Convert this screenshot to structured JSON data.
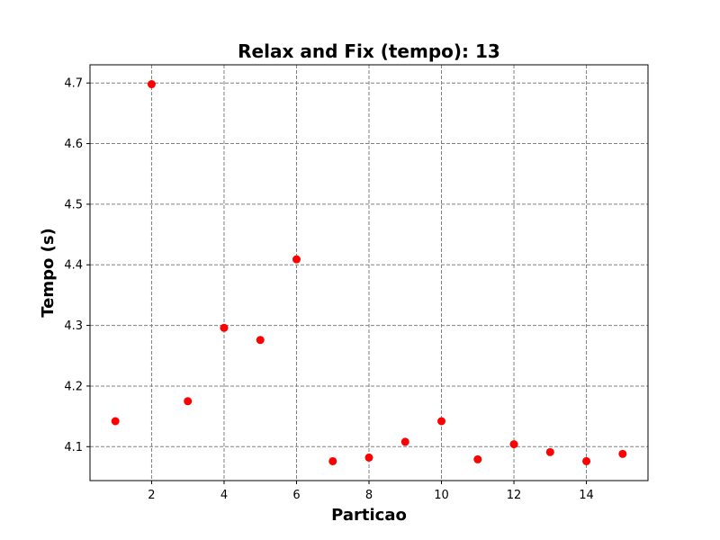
{
  "chart_data": {
    "type": "scatter",
    "title": "Relax and Fix (tempo): 13",
    "xlabel": "Particao",
    "ylabel": "Tempo (s)",
    "xlim": [
      0.3,
      15.7
    ],
    "ylim": [
      4.044,
      4.73
    ],
    "xticks": [
      2,
      4,
      6,
      8,
      10,
      12,
      14
    ],
    "yticks": [
      4.1,
      4.2,
      4.3,
      4.4,
      4.5,
      4.6,
      4.7
    ],
    "xtick_labels": [
      "2",
      "4",
      "6",
      "8",
      "10",
      "12",
      "14"
    ],
    "ytick_labels": [
      "4.1",
      "4.2",
      "4.3",
      "4.4",
      "4.5",
      "4.6",
      "4.7"
    ],
    "grid": true,
    "series": [
      {
        "color": "#ff0000",
        "x": [
          1,
          2,
          3,
          4,
          5,
          6,
          7,
          8,
          9,
          10,
          11,
          12,
          13,
          14,
          15
        ],
        "y": [
          4.142,
          4.698,
          4.175,
          4.296,
          4.276,
          4.409,
          4.076,
          4.082,
          4.108,
          4.142,
          4.079,
          4.104,
          4.091,
          4.076,
          4.088
        ]
      }
    ]
  }
}
